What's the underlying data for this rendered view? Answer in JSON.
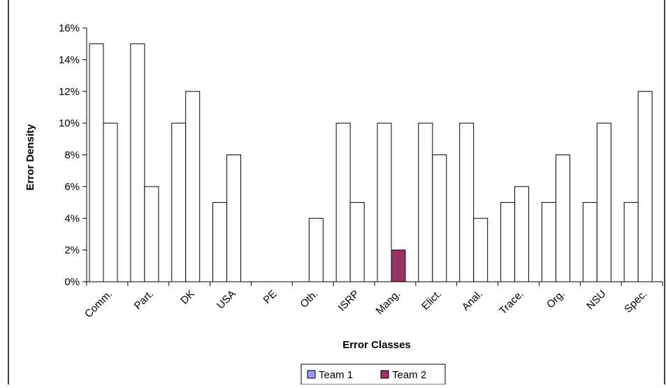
{
  "chart_data": {
    "type": "bar",
    "xlabel": "Error Classes",
    "ylabel": "Error Density",
    "categories": [
      "Comm.",
      "Part.",
      "DK",
      "USA",
      "PE",
      "Oth.",
      "ISRP",
      "Mang.",
      "Elict.",
      "Anal.",
      "Trace.",
      "Org.",
      "NSU",
      "Spec."
    ],
    "series": [
      {
        "name": "Team 1",
        "color": "#9999ff",
        "values": [
          0.15,
          0.15,
          0.1,
          0.05,
          0,
          0,
          0.1,
          0.1,
          0.1,
          0.1,
          0.05,
          0.05,
          0.05,
          0.05
        ]
      },
      {
        "name": "Team 2",
        "color": "#993366",
        "values": [
          0.1,
          0.06,
          0.12,
          0.08,
          0,
          0.04,
          0.05,
          0.02,
          0.08,
          0.04,
          0.06,
          0.08,
          0.1,
          0.12
        ]
      }
    ],
    "highlighted_bar": {
      "category": "Mang.",
      "series": "Team 2"
    },
    "bar_fill": "#ffffff",
    "ylim": [
      0,
      0.16
    ],
    "yticks": [
      "0%",
      "2%",
      "4%",
      "6%",
      "8%",
      "10%",
      "12%",
      "14%",
      "16%"
    ],
    "legend_position": "bottom",
    "grid": false
  }
}
